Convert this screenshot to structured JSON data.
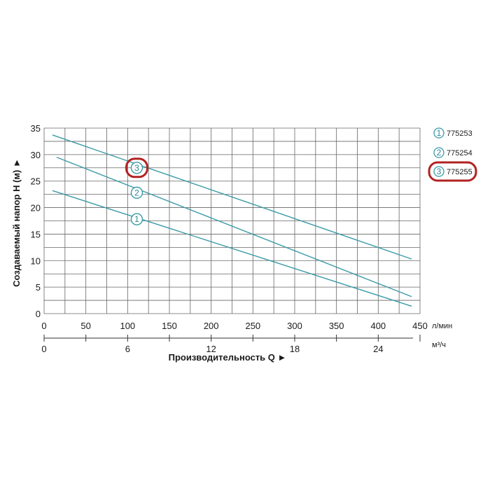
{
  "chart_data": {
    "type": "line",
    "xlabel": "Производительность Q ►",
    "ylabel": "Создаваемый напор H (м) ►",
    "x_unit_primary": "л/мин",
    "x_unit_secondary": "м³/ч",
    "xlim": [
      0,
      450
    ],
    "ylim": [
      0,
      35
    ],
    "x_ticks": [
      "0",
      "50",
      "100",
      "150",
      "200",
      "250",
      "300",
      "350",
      "400",
      "450"
    ],
    "x2_ticks": [
      "0",
      "6",
      "12",
      "18",
      "24"
    ],
    "y_ticks": [
      "0",
      "5",
      "10",
      "15",
      "20",
      "25",
      "30",
      "35"
    ],
    "grid": true,
    "legend_position": "right",
    "series_color": "#3a9aa6",
    "highlight_color": "#b22222",
    "series": [
      {
        "marker": "1",
        "name": "775253",
        "x": [
          10,
          440
        ],
        "y": [
          23.2,
          1.4
        ],
        "marker_at": [
          111,
          17.8
        ],
        "highlighted": false
      },
      {
        "marker": "2",
        "name": "775254",
        "x": [
          15,
          440
        ],
        "y": [
          29.5,
          3.2
        ],
        "marker_at": [
          111,
          22.8
        ],
        "highlighted": false
      },
      {
        "marker": "3",
        "name": "775255",
        "x": [
          10,
          440
        ],
        "y": [
          33.7,
          10.3
        ],
        "marker_at": [
          111,
          27.5
        ],
        "highlighted": true
      }
    ]
  }
}
